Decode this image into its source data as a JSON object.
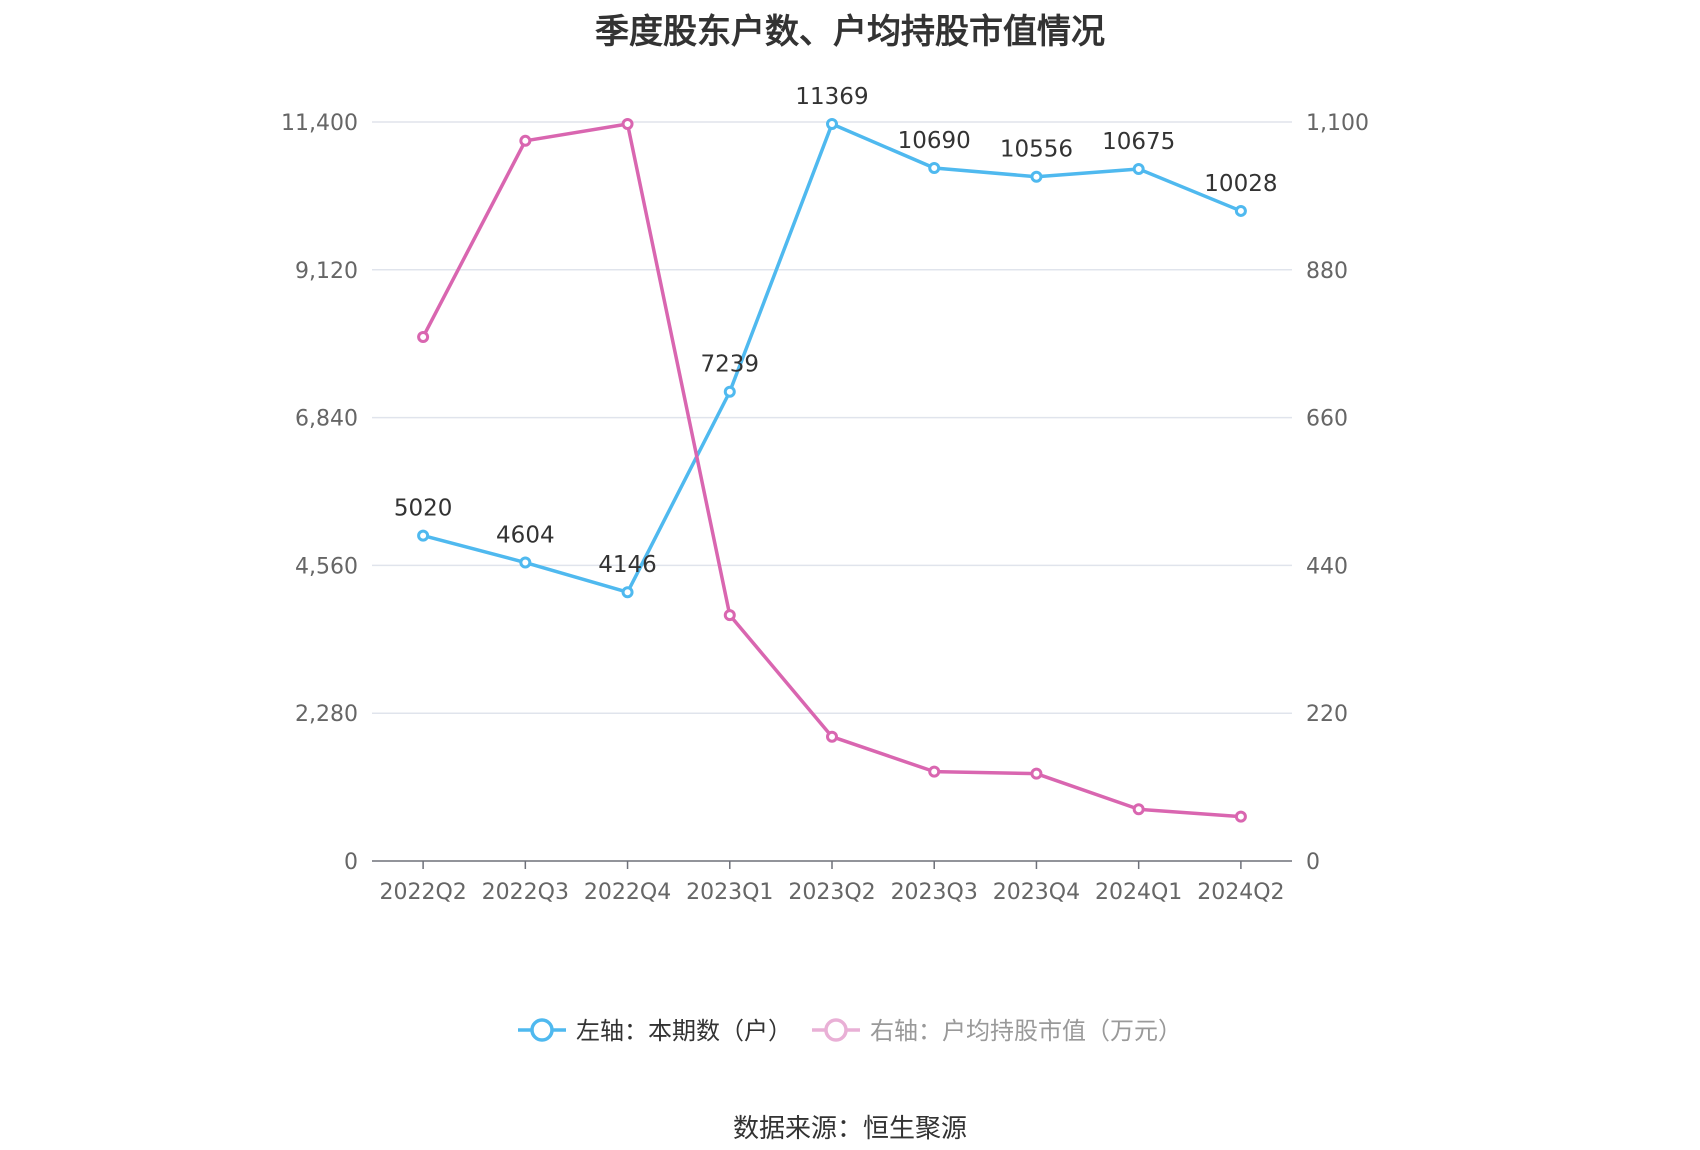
{
  "title": "季度股东户数、户均持股市值情况",
  "source": "数据来源：恒生聚源",
  "chart_data": {
    "type": "line",
    "categories": [
      "2022Q2",
      "2022Q3",
      "2022Q4",
      "2023Q1",
      "2023Q2",
      "2023Q3",
      "2023Q4",
      "2024Q1",
      "2024Q2"
    ],
    "series": [
      {
        "name": "左轴：本期数（户）",
        "axis": "left",
        "color": "#4fb9ef",
        "values": [
          5020,
          4604,
          4146,
          7239,
          11369,
          10690,
          10556,
          10675,
          10028
        ],
        "labels": [
          "5020",
          "4604",
          "4146",
          "7239",
          "11369",
          "10690",
          "10556",
          "10675",
          "10028"
        ]
      },
      {
        "name": "右轴：户均持股市值（万元）",
        "axis": "right",
        "color": "#d966b0",
        "values": [
          780,
          1072,
          1097,
          366,
          185,
          133,
          130,
          77,
          66
        ]
      }
    ],
    "left_axis": {
      "min": 0,
      "max": 11400,
      "ticks": [
        "0",
        "2,280",
        "4,560",
        "6,840",
        "9,120",
        "11,400"
      ]
    },
    "right_axis": {
      "min": 0,
      "max": 1100,
      "ticks": [
        "0",
        "220",
        "440",
        "660",
        "880",
        "1,100"
      ]
    },
    "grid": true,
    "legend_position": "bottom"
  }
}
